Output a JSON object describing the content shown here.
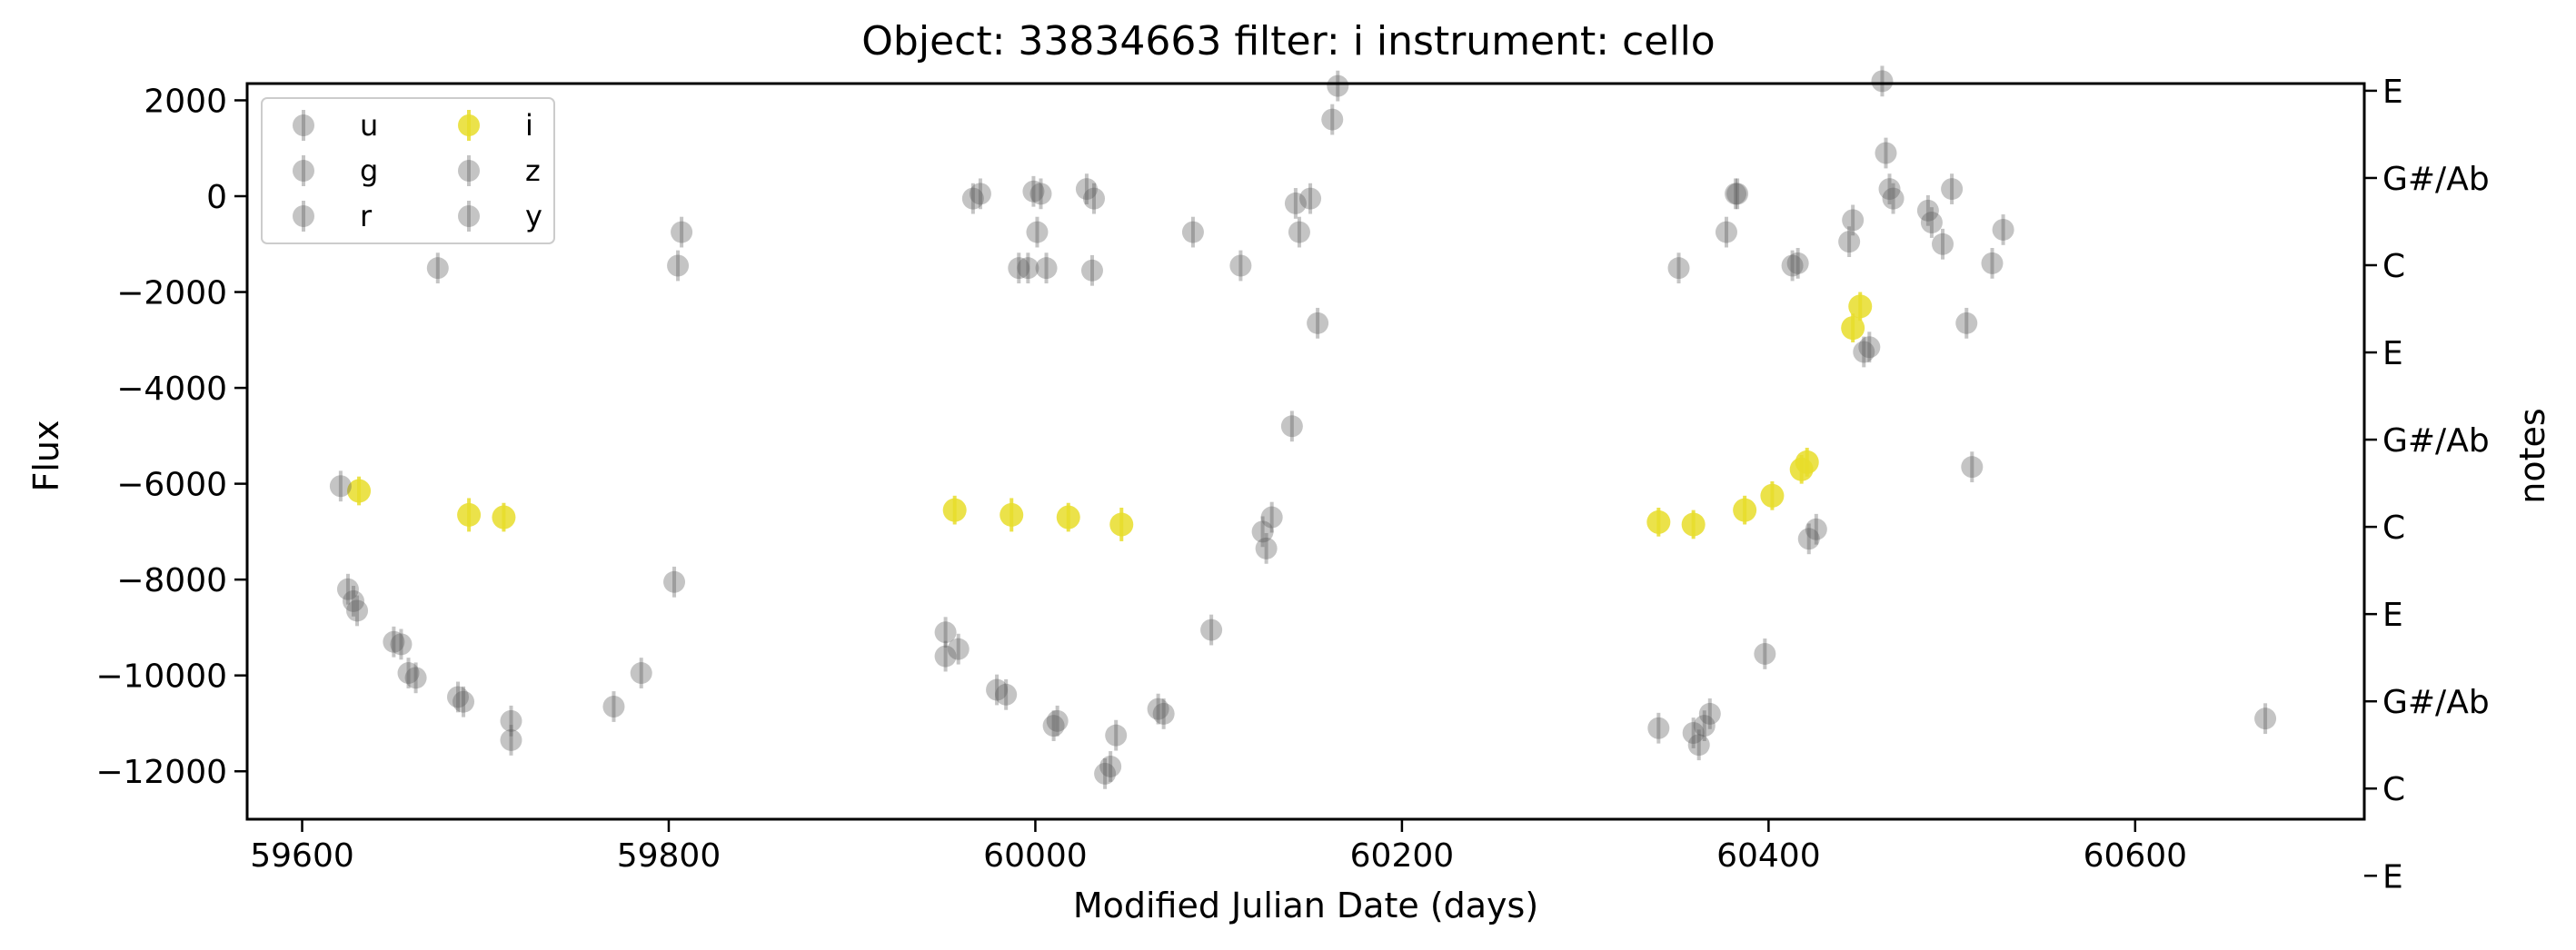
{
  "chart_data": {
    "type": "scatter",
    "title": "Object: 33834663 filter: i instrument: cello",
    "xlabel": "Modified Julian Date (days)",
    "ylabel": "Flux",
    "y2label": "notes",
    "xlim": [
      59570,
      60725
    ],
    "ylim": [
      -13000,
      2350
    ],
    "xticks": [
      59600,
      59800,
      60000,
      60200,
      60400,
      60600
    ],
    "xtick_labels": [
      "59600",
      "59800",
      "60000",
      "60200",
      "60400",
      "60600"
    ],
    "yticks": [
      2000,
      0,
      -2000,
      -4000,
      -6000,
      -8000,
      -10000,
      -12000
    ],
    "ytick_labels": [
      "2000",
      "0",
      "−2000",
      "−4000",
      "−6000",
      "−8000",
      "−10000",
      "−12000"
    ],
    "y2ticks": [
      2200,
      380,
      -1440,
      -3260,
      -5080,
      -6900,
      -8720,
      -10540,
      -12360,
      -14180
    ],
    "y2tick_labels": [
      "E",
      "G#/Ab",
      "C",
      "E",
      "G#/Ab",
      "C",
      "E",
      "G#/Ab",
      "C",
      "E"
    ],
    "legend_position": "upper-left",
    "legend_columns": 2,
    "colors": {
      "highlight": "#e8dd2a",
      "other": "#555555"
    },
    "series": [
      {
        "name": "u",
        "highlight": false,
        "x": [],
        "y": []
      },
      {
        "name": "g",
        "highlight": false,
        "x": [],
        "y": []
      },
      {
        "name": "r",
        "highlight": false,
        "x": [],
        "y": []
      },
      {
        "name": "i",
        "highlight": true,
        "x": [
          59631,
          59691,
          59710,
          59956,
          59987,
          60018,
          60047,
          60340,
          60359,
          60387,
          60402,
          60418,
          60421,
          60446,
          60450
        ],
        "y": [
          -6150,
          -6650,
          -6700,
          -6550,
          -6650,
          -6700,
          -6850,
          -6800,
          -6850,
          -6550,
          -6250,
          -5700,
          -5550,
          -2750,
          -2300
        ],
        "err": [
          300,
          350,
          300,
          300,
          350,
          300,
          350,
          300,
          300,
          300,
          300,
          300,
          300,
          300,
          300
        ]
      },
      {
        "name": "z",
        "highlight": false,
        "x": [],
        "y": []
      },
      {
        "name": "y",
        "highlight": false,
        "x": [
          59621,
          59625,
          59628,
          59630,
          59650,
          59654,
          59658,
          59662,
          59674,
          59685,
          59688,
          59714,
          59714,
          59770,
          59785,
          59803,
          59805,
          59807,
          59951,
          59951,
          59958,
          59966,
          59970,
          59979,
          59984,
          59991,
          59996,
          59999,
          60001,
          60003,
          60006,
          60010,
          60012,
          60028,
          60031,
          60032,
          60038,
          60041,
          60044,
          60067,
          60070,
          60086,
          60096,
          60112,
          60124,
          60126,
          60129,
          60140,
          60142,
          60144,
          60150,
          60154,
          60162,
          60165,
          60340,
          60351,
          60359,
          60362,
          60365,
          60368,
          60377,
          60382,
          60383,
          60398,
          60413,
          60416,
          60422,
          60426,
          60444,
          60446,
          60452,
          60455,
          60462,
          60464,
          60466,
          60468,
          60487,
          60489,
          60495,
          60500,
          60508,
          60511,
          60522,
          60528,
          60671
        ],
        "y": [
          -6050,
          -8200,
          -8450,
          -8650,
          -9300,
          -9350,
          -9950,
          -10050,
          -1500,
          -10450,
          -10550,
          -11350,
          -10950,
          -10650,
          -9950,
          -8050,
          -1450,
          -750,
          -9100,
          -9600,
          -9450,
          -50,
          50,
          -10300,
          -10400,
          -1500,
          -1500,
          100,
          -750,
          50,
          -1500,
          -11050,
          -10950,
          150,
          -1550,
          -50,
          -12050,
          -11900,
          -11250,
          -10700,
          -10800,
          -750,
          -9050,
          -1450,
          -7000,
          -7350,
          -6700,
          -4800,
          -150,
          -750,
          -50,
          -2650,
          1600,
          2300,
          -11100,
          -1500,
          -11200,
          -11450,
          -11050,
          -10800,
          -750,
          50,
          50,
          -9550,
          -1450,
          -1400,
          -7150,
          -6950,
          -950,
          -500,
          -3250,
          -3150,
          2400,
          900,
          150,
          -50,
          -300,
          -550,
          -1000,
          150,
          -2650,
          -5650,
          -1400,
          -700,
          -10900
        ]
      }
    ]
  }
}
